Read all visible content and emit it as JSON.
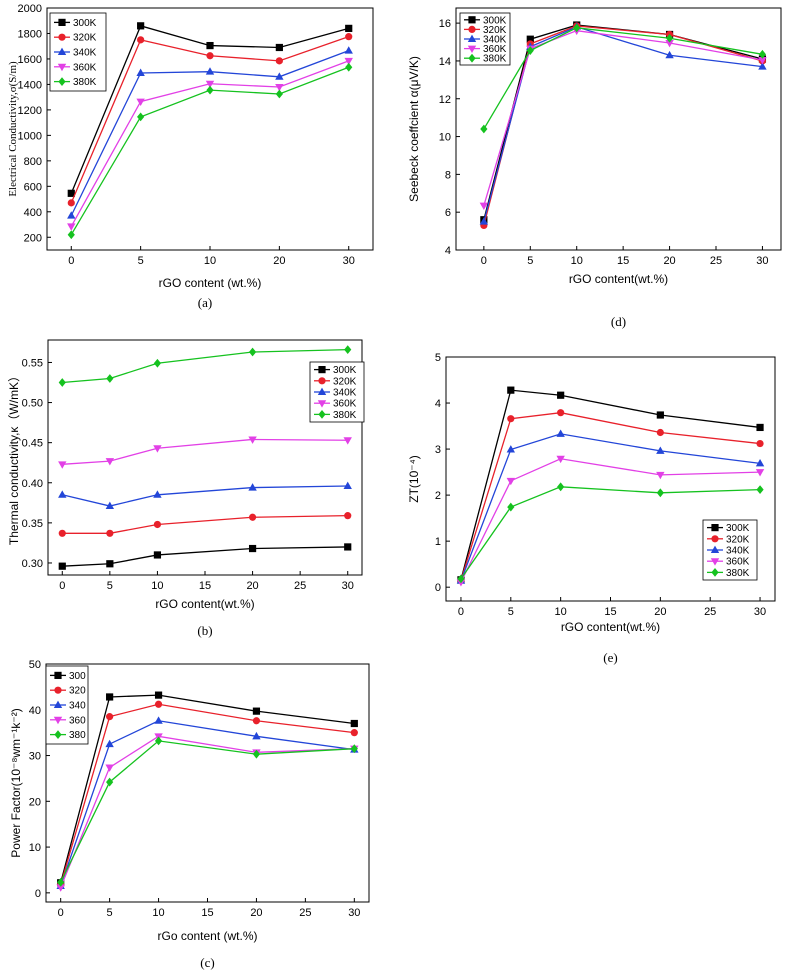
{
  "colors": [
    "#000000",
    "#e8212b",
    "#2346d8",
    "#e240e6",
    "#15c21f"
  ],
  "chart_data": [
    {
      "id": "a",
      "type": "line",
      "panel_label": "(a)",
      "x": [
        0,
        5,
        10,
        20,
        30
      ],
      "x_positions": [
        0,
        1,
        2,
        3,
        4
      ],
      "xlabel": "rGO content (wt.%)",
      "ylabel": "Electrical Conductivity,σ(S/m)",
      "ylim": [
        100,
        2000
      ],
      "yticks": [
        200,
        400,
        600,
        800,
        1000,
        1200,
        1400,
        1600,
        1800,
        2000
      ],
      "legend_position": "top-left",
      "series": [
        {
          "name": "300K",
          "values": [
            545,
            1860,
            1705,
            1690,
            1840
          ]
        },
        {
          "name": "320K",
          "values": [
            470,
            1750,
            1625,
            1585,
            1775
          ]
        },
        {
          "name": "340K",
          "values": [
            370,
            1490,
            1500,
            1460,
            1665
          ]
        },
        {
          "name": "360K",
          "values": [
            285,
            1265,
            1405,
            1380,
            1585
          ]
        },
        {
          "name": "380K",
          "values": [
            220,
            1145,
            1355,
            1325,
            1535
          ]
        }
      ]
    },
    {
      "id": "d",
      "type": "line",
      "panel_label": "(d)",
      "x": [
        0,
        5,
        10,
        20,
        30
      ],
      "xlabel": "rGO content(wt.%)",
      "ylabel": "Seebeck coeffcient α(μV/K)",
      "xlim": [
        -3,
        32
      ],
      "xticks": [
        0,
        5,
        10,
        15,
        20,
        25,
        30
      ],
      "ylim": [
        4,
        16.8
      ],
      "yticks": [
        4,
        6,
        8,
        10,
        12,
        14,
        16
      ],
      "legend_position": "top-left",
      "series": [
        {
          "name": "300K",
          "values": [
            5.6,
            15.15,
            15.9,
            15.4,
            14.1
          ]
        },
        {
          "name": "320K",
          "values": [
            5.3,
            14.9,
            15.85,
            15.4,
            14.0
          ]
        },
        {
          "name": "340K",
          "values": [
            5.5,
            14.75,
            15.8,
            14.3,
            13.7
          ]
        },
        {
          "name": "360K",
          "values": [
            6.35,
            14.65,
            15.6,
            14.95,
            14.05
          ]
        },
        {
          "name": "380K",
          "values": [
            10.4,
            14.55,
            15.75,
            15.2,
            14.35
          ]
        }
      ]
    },
    {
      "id": "b",
      "type": "line",
      "panel_label": "(b)",
      "x": [
        0,
        5,
        10,
        20,
        30
      ],
      "xlabel": "rGO content(wt.%)",
      "ylabel": "Thermal conductivity,κ（W/mK）",
      "xlim": [
        -1.5,
        31.5
      ],
      "xticks": [
        0,
        5,
        10,
        15,
        20,
        25,
        30
      ],
      "ylim": [
        0.285,
        0.578
      ],
      "yticks": [
        0.3,
        0.35,
        0.4,
        0.45,
        0.5,
        0.55
      ],
      "legend_position": "right",
      "series": [
        {
          "name": "300K",
          "values": [
            0.296,
            0.299,
            0.31,
            0.318,
            0.32
          ]
        },
        {
          "name": "320K",
          "values": [
            0.337,
            0.337,
            0.348,
            0.357,
            0.359
          ]
        },
        {
          "name": "340K",
          "values": [
            0.385,
            0.371,
            0.385,
            0.394,
            0.396
          ]
        },
        {
          "name": "360K",
          "values": [
            0.423,
            0.427,
            0.443,
            0.454,
            0.453
          ]
        },
        {
          "name": "380K",
          "values": [
            0.525,
            0.53,
            0.549,
            0.563,
            0.566
          ]
        }
      ]
    },
    {
      "id": "e",
      "type": "line",
      "panel_label": "(e)",
      "x": [
        0,
        5,
        10,
        20,
        30
      ],
      "xlabel": "rGO content(wt.%)",
      "ylabel": "ZT(10⁻⁴)",
      "xlim": [
        -1.5,
        31.5
      ],
      "xticks": [
        0,
        5,
        10,
        15,
        20,
        25,
        30
      ],
      "ylim": [
        -0.3,
        5.0
      ],
      "yticks": [
        0,
        1,
        2,
        3,
        4,
        5
      ],
      "legend_position": "bottom-right",
      "series": [
        {
          "name": "300K",
          "values": [
            0.16,
            4.28,
            4.17,
            3.74,
            3.47
          ]
        },
        {
          "name": "320K",
          "values": [
            0.15,
            3.66,
            3.79,
            3.36,
            3.12
          ]
        },
        {
          "name": "340K",
          "values": [
            0.14,
            2.99,
            3.33,
            2.96,
            2.69
          ]
        },
        {
          "name": "360K",
          "values": [
            0.11,
            2.31,
            2.79,
            2.44,
            2.5
          ]
        },
        {
          "name": "380K",
          "values": [
            0.18,
            1.74,
            2.18,
            2.05,
            2.12
          ]
        }
      ]
    },
    {
      "id": "c",
      "type": "line",
      "panel_label": "(c)",
      "x": [
        0,
        5,
        10,
        20,
        30
      ],
      "xlabel": "rGo content (wt.%)",
      "ylabel": "Power Factor(10⁻⁸wm⁻¹k⁻²)",
      "xlim": [
        -1.5,
        31.5
      ],
      "xticks": [
        0,
        5,
        10,
        15,
        20,
        25,
        30
      ],
      "ylim": [
        -2,
        50
      ],
      "yticks": [
        0,
        10,
        20,
        30,
        40,
        50
      ],
      "legend_position": "top-left",
      "series": [
        {
          "name": "300",
          "values": [
            2.2,
            42.8,
            43.2,
            39.7,
            37.0
          ]
        },
        {
          "name": "320",
          "values": [
            1.8,
            38.5,
            41.2,
            37.6,
            35.0
          ]
        },
        {
          "name": "340",
          "values": [
            1.5,
            32.5,
            37.6,
            34.2,
            31.3
          ]
        },
        {
          "name": "360",
          "values": [
            1.2,
            27.4,
            34.2,
            30.7,
            31.5
          ]
        },
        {
          "name": "380",
          "values": [
            2.3,
            24.2,
            33.2,
            30.3,
            31.5
          ]
        }
      ]
    }
  ]
}
